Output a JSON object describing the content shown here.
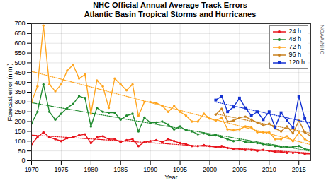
{
  "chart_data": {
    "type": "line",
    "title": "NHC Official Annual Average Track Errors",
    "subtitle": "Atlantic Basin Tropical Storms and Hurricanes",
    "xlabel": "Year",
    "ylabel": "Forecast error (n mi)",
    "credit": "NOAA/NHC",
    "x": [
      1970,
      1971,
      1972,
      1973,
      1974,
      1975,
      1976,
      1977,
      1978,
      1979,
      1980,
      1981,
      1982,
      1983,
      1984,
      1985,
      1986,
      1987,
      1988,
      1989,
      1990,
      1991,
      1992,
      1993,
      1994,
      1995,
      1996,
      1997,
      1998,
      1999,
      2000,
      2001,
      2002,
      2003,
      2004,
      2005,
      2006,
      2007,
      2008,
      2009,
      2010,
      2011,
      2012,
      2013,
      2014,
      2015,
      2016,
      2017
    ],
    "series": [
      {
        "name": "24 h",
        "color": "#e8141c",
        "marker": "circle",
        "values": [
          85,
          120,
          145,
          120,
          110,
          100,
          115,
          120,
          130,
          135,
          90,
          120,
          125,
          110,
          110,
          95,
          105,
          110,
          75,
          95,
          100,
          105,
          95,
          110,
          100,
          90,
          85,
          75,
          75,
          80,
          75,
          70,
          75,
          65,
          60,
          60,
          55,
          55,
          50,
          55,
          50,
          45,
          45,
          40,
          40,
          40,
          35,
          35
        ]
      },
      {
        "name": "48 h",
        "color": "#1f8a2e",
        "marker": "circle",
        "values": [
          190,
          250,
          390,
          250,
          210,
          240,
          270,
          290,
          330,
          320,
          175,
          270,
          250,
          245,
          245,
          210,
          230,
          240,
          150,
          220,
          195,
          195,
          200,
          185,
          160,
          175,
          155,
          150,
          135,
          140,
          130,
          130,
          120,
          110,
          100,
          105,
          95,
          95,
          90,
          85,
          80,
          75,
          70,
          70,
          70,
          75,
          60,
          55
        ]
      },
      {
        "name": "72 h",
        "color": "#ffa51f",
        "marker": "circle",
        "values": [
          300,
          380,
          690,
          390,
          355,
          390,
          460,
          490,
          420,
          440,
          240,
          410,
          380,
          270,
          420,
          390,
          360,
          390,
          230,
          300,
          300,
          295,
          280,
          250,
          280,
          250,
          230,
          200,
          200,
          240,
          215,
          205,
          220,
          160,
          155,
          160,
          175,
          170,
          145,
          145,
          145,
          110,
          110,
          125,
          100,
          145,
          110,
          95
        ]
      },
      {
        "name": "96 h",
        "color": "#c8801e",
        "marker": "circle",
        "values": [
          null,
          null,
          null,
          null,
          null,
          null,
          null,
          null,
          null,
          null,
          null,
          null,
          null,
          null,
          null,
          null,
          null,
          null,
          null,
          null,
          null,
          null,
          null,
          null,
          null,
          null,
          null,
          null,
          null,
          null,
          null,
          235,
          265,
          200,
          205,
          220,
          225,
          210,
          195,
          180,
          190,
          165,
          150,
          175,
          140,
          205,
          145,
          125
        ]
      },
      {
        "name": "120 h",
        "color": "#1432d2",
        "marker": "square",
        "values": [
          null,
          null,
          null,
          null,
          null,
          null,
          null,
          null,
          null,
          null,
          null,
          null,
          null,
          null,
          null,
          null,
          null,
          null,
          null,
          null,
          null,
          null,
          null,
          null,
          null,
          null,
          null,
          null,
          null,
          null,
          null,
          310,
          330,
          250,
          275,
          320,
          270,
          230,
          250,
          210,
          250,
          170,
          245,
          205,
          170,
          330,
          215,
          155
        ]
      }
    ],
    "xlim": [
      1970,
      2017
    ],
    "xticks": [
      1970,
      1975,
      1980,
      1985,
      1990,
      1995,
      2000,
      2005,
      2010,
      2015
    ],
    "ylim": [
      0,
      700
    ],
    "yticks": [
      0,
      50,
      100,
      150,
      200,
      250,
      300,
      350,
      400,
      450,
      500,
      550,
      600,
      650,
      700
    ],
    "grid": true,
    "legend": "top-right"
  }
}
